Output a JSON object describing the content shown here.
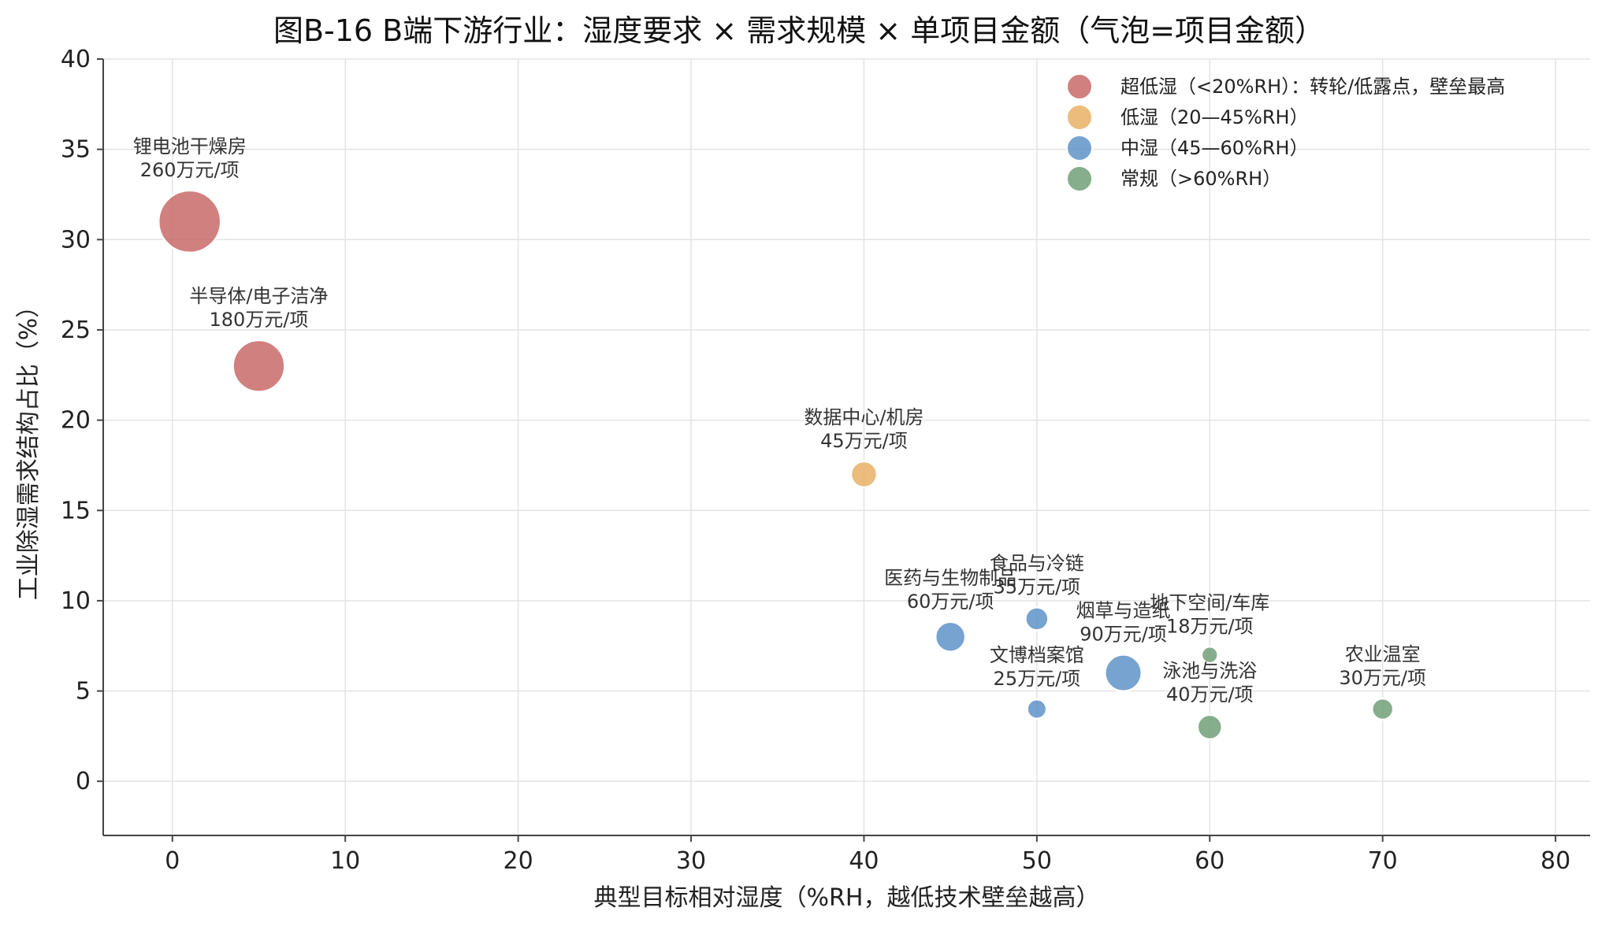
{
  "chart_data": {
    "type": "scatter",
    "title": "图B-16  B端下游行业：湿度要求 × 需求规模 × 单项目金额（气泡=项目金额）",
    "xlabel": "典型目标相对湿度（%RH，越低技术壁垒越高）",
    "ylabel": "工业除湿需求结构占比（%）",
    "xlim": [
      -4,
      82
    ],
    "ylim": [
      -3,
      40
    ],
    "xticks": [
      0,
      10,
      20,
      30,
      40,
      50,
      60,
      70,
      80
    ],
    "yticks": [
      0,
      5,
      10,
      15,
      20,
      25,
      30,
      35,
      40
    ],
    "grid": true,
    "legend_position": "top-right",
    "categories": [
      {
        "key": "ultra",
        "name": "超低湿（<20%RH）：转轮/低露点，壁垒最高",
        "color": "#c96a6a"
      },
      {
        "key": "low",
        "name": "低湿（20—45%RH）",
        "color": "#e8b065"
      },
      {
        "key": "mid",
        "name": "中湿（45—60%RH）",
        "color": "#5f93c8"
      },
      {
        "key": "normal",
        "name": "常规（>60%RH）",
        "color": "#71a078"
      }
    ],
    "points": [
      {
        "label": "锂电池干燥房",
        "amount_label": "260万元/项",
        "x": 1,
        "y": 31,
        "amount": 260,
        "category": "ultra"
      },
      {
        "label": "半导体/电子洁净",
        "amount_label": "180万元/项",
        "x": 5,
        "y": 23,
        "amount": 180,
        "category": "ultra"
      },
      {
        "label": "数据中心/机房",
        "amount_label": "45万元/项",
        "x": 40,
        "y": 17,
        "amount": 45,
        "category": "low"
      },
      {
        "label": "医药与生物制品",
        "amount_label": "60万元/项",
        "x": 45,
        "y": 8,
        "amount": 60,
        "category": "mid"
      },
      {
        "label": "食品与冷链",
        "amount_label": "35万元/项",
        "x": 50,
        "y": 9,
        "amount": 35,
        "category": "mid"
      },
      {
        "label": "文博档案馆",
        "amount_label": "25万元/项",
        "x": 50,
        "y": 4,
        "amount": 25,
        "category": "mid"
      },
      {
        "label": "烟草与造纸",
        "amount_label": "90万元/项",
        "x": 55,
        "y": 6,
        "amount": 90,
        "category": "mid"
      },
      {
        "label": "地下空间/车库",
        "amount_label": "18万元/项",
        "x": 60,
        "y": 7,
        "amount": 18,
        "category": "normal"
      },
      {
        "label": "泳池与洗浴",
        "amount_label": "40万元/项",
        "x": 60,
        "y": 3,
        "amount": 40,
        "category": "normal"
      },
      {
        "label": "农业温室",
        "amount_label": "30万元/项",
        "x": 70,
        "y": 4,
        "amount": 30,
        "category": "normal"
      }
    ]
  }
}
